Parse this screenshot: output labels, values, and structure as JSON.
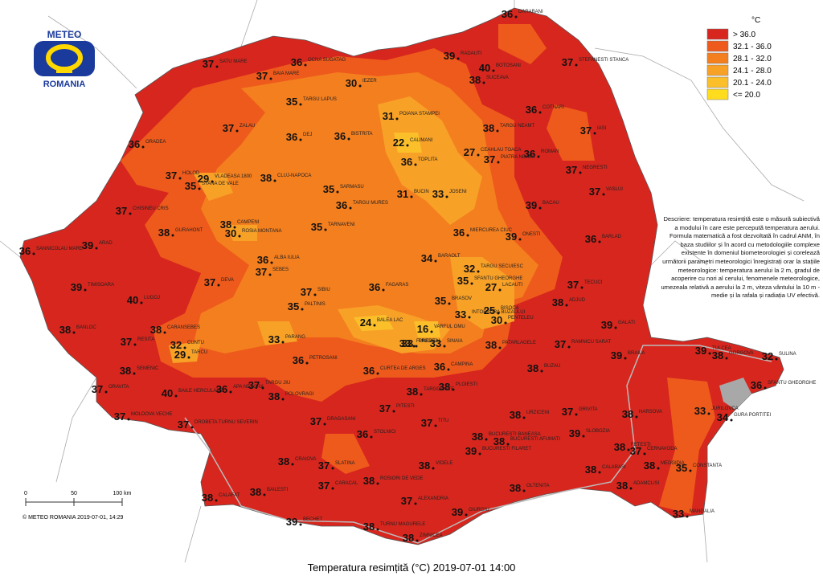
{
  "logo": {
    "top": "METEO",
    "bottom": "ROMANIA"
  },
  "legend": {
    "unit": "°C",
    "classes": [
      {
        "label": "> 36.0",
        "color": "#d7261e"
      },
      {
        "label": "32.1 - 36.0",
        "color": "#ee5a1c"
      },
      {
        "label": "28.1 - 32.0",
        "color": "#f47f1f"
      },
      {
        "label": "24.1 - 28.0",
        "color": "#f8a127"
      },
      {
        "label": "20.1 - 24.0",
        "color": "#fbbf2a"
      },
      {
        "label": "<= 20.0",
        "color": "#ffdc1e"
      }
    ]
  },
  "description": "Descriere: temperatura resimțită este o măsură subiectivă a modului în care este percepută temperatura aerului. Formula matematică a fost dezvoltată în cadrul ANM, în baza studiilor și în acord cu metodologiile complexe existente în domeniul biometeorologiei și corelează următorii parametri meteorologici înregistrați orar la stațiile meteorologice: temperatura aerului la 2 m, gradul de acoperire cu nori al cerului, fenomenele meteorologice, umezeala relativă a aerului la 2 m, viteza vântului la 10 m - medie și la rafala și radiația UV efectivă.",
  "scale": [
    "0",
    "50",
    "100 km"
  ],
  "copyright": "© METEO ROMANIA 2019-07-01, 14:29",
  "title": "Temperatura resimțită (°C) 2019-07-01 14:00",
  "stations": [
    {
      "name": "DARABANI",
      "value": 36
    },
    {
      "name": "STEFANESTI STANCA",
      "value": 37
    },
    {
      "name": "RADAUTI",
      "value": 39
    },
    {
      "name": "BOTOSANI",
      "value": 40
    },
    {
      "name": "SUCEAVA",
      "value": 38
    },
    {
      "name": "COTNARI",
      "value": 36
    },
    {
      "name": "IASI",
      "value": 37
    },
    {
      "name": "TARGU NEAMT",
      "value": 38
    },
    {
      "name": "ROMAN",
      "value": 36
    },
    {
      "name": "PIATRA NEAMT",
      "value": 37
    },
    {
      "name": "NEGRESTI",
      "value": 37
    },
    {
      "name": "VASLUI",
      "value": 37
    },
    {
      "name": "BACAU",
      "value": 39
    },
    {
      "name": "BARLAD",
      "value": 36
    },
    {
      "name": "ONESTI",
      "value": 39
    },
    {
      "name": "TECUCI",
      "value": 37
    },
    {
      "name": "ADJUD",
      "value": 38
    },
    {
      "name": "GALATI",
      "value": 39
    },
    {
      "name": "RAMNICU SARAT",
      "value": 37
    },
    {
      "name": "BRAILA",
      "value": 39
    },
    {
      "name": "TULCEA",
      "value": 39
    },
    {
      "name": "GORGOVA",
      "value": 38
    },
    {
      "name": "SULINA",
      "value": 32
    },
    {
      "name": "SFANTU GHEORGHE",
      "value": 36
    },
    {
      "name": "JURILOVCA",
      "value": 33
    },
    {
      "name": "GURA PORTITEI",
      "value": 34
    },
    {
      "name": "HARSOVA",
      "value": 38
    },
    {
      "name": "CONSTANTA",
      "value": 35
    },
    {
      "name": "MEDGIDIA",
      "value": 38
    },
    {
      "name": "MANGALIA",
      "value": 33
    },
    {
      "name": "ADAMCLISI",
      "value": 38
    },
    {
      "name": "CERNAVODA",
      "value": 37
    },
    {
      "name": "FETESTI",
      "value": 38
    },
    {
      "name": "CALARASI",
      "value": 38
    },
    {
      "name": "SLOBOZIA",
      "value": 39
    },
    {
      "name": "URZICENI",
      "value": 38
    },
    {
      "name": "GRIVITA",
      "value": 37
    },
    {
      "name": "BUZAU",
      "value": 38
    },
    {
      "name": "PATARLAGELE",
      "value": 38
    },
    {
      "name": "PLOIESTI",
      "value": 38
    },
    {
      "name": "CAMPINA",
      "value": 36
    },
    {
      "name": "SINAIA",
      "value": 33
    },
    {
      "name": "PREDEAL",
      "value": 33
    },
    {
      "name": "VARFUL OMU",
      "value": 16
    },
    {
      "name": "TARGOVISTE",
      "value": 38
    },
    {
      "name": "BRASOV",
      "value": 35
    },
    {
      "name": "INTORSURA BUZAULUI",
      "value": 33
    },
    {
      "name": "LACAUTI",
      "value": 27
    },
    {
      "name": "BISOCA",
      "value": 25
    },
    {
      "name": "PENTELEU",
      "value": 30
    },
    {
      "name": "SFANTU GHEORGHE",
      "value": 35
    },
    {
      "name": "TARGU SECUIESC",
      "value": 32
    },
    {
      "name": "BARAOLT",
      "value": 34
    },
    {
      "name": "MIERCUREA CIUC",
      "value": 36
    },
    {
      "name": "JOSENI",
      "value": 33
    },
    {
      "name": "CEAHLAU TOACA",
      "value": 27
    },
    {
      "name": "BUCIN",
      "value": 31
    },
    {
      "name": "TOPLITA",
      "value": 36
    },
    {
      "name": "CALIMANI",
      "value": 22
    },
    {
      "name": "POIANA STAMPEI",
      "value": 31
    },
    {
      "name": "IEZER",
      "value": 30
    },
    {
      "name": "OCNA SUGATAG",
      "value": 36
    },
    {
      "name": "BAIA MARE",
      "value": 37
    },
    {
      "name": "SATU MARE",
      "value": 37
    },
    {
      "name": "TARGU LAPUS",
      "value": 35
    },
    {
      "name": "ZALAU",
      "value": 37
    },
    {
      "name": "DEJ",
      "value": 36
    },
    {
      "name": "BISTRITA",
      "value": 36
    },
    {
      "name": "ORADEA",
      "value": 36
    },
    {
      "name": "CLUJ-NAPOCA",
      "value": 38
    },
    {
      "name": "SARMASU",
      "value": 35
    },
    {
      "name": "TARGU MURES",
      "value": 36
    },
    {
      "name": "TARNAVENI",
      "value": 35
    },
    {
      "name": "VLADEASA 1800",
      "value": 29
    },
    {
      "name": "STANA DE VALE",
      "value": 35
    },
    {
      "name": "HOLOD",
      "value": 37
    },
    {
      "name": "CHISINEU CRIS",
      "value": 37
    },
    {
      "name": "ARAD",
      "value": 39
    },
    {
      "name": "SANNICOLAU MARE",
      "value": 36
    },
    {
      "name": "TIMISOARA",
      "value": 39
    },
    {
      "name": "LUGOJ",
      "value": 40
    },
    {
      "name": "BANLOC",
      "value": 38
    },
    {
      "name": "RESITA",
      "value": 37
    },
    {
      "name": "CARANSEBES",
      "value": 38
    },
    {
      "name": "SEMENIC",
      "value": 38
    },
    {
      "name": "ORAVITA",
      "value": 37
    },
    {
      "name": "MOLDOVA VECHE",
      "value": 37
    },
    {
      "name": "BAILE HERCULANE",
      "value": 40
    },
    {
      "name": "DROBETA TURNU SEVERIN",
      "value": 37
    },
    {
      "name": "CUNTU",
      "value": 32
    },
    {
      "name": "TARCU",
      "value": 29
    },
    {
      "name": "PARANG",
      "value": 33
    },
    {
      "name": "PETROSANI",
      "value": 36
    },
    {
      "name": "TARGU JIU",
      "value": 37
    },
    {
      "name": "APA NEAGRA",
      "value": 36
    },
    {
      "name": "POLOVRAGI",
      "value": 38
    },
    {
      "name": "SIBIU",
      "value": 37
    },
    {
      "name": "PALTINIS",
      "value": 35
    },
    {
      "name": "DEVA",
      "value": 37
    },
    {
      "name": "ALBA IULIA",
      "value": 36
    },
    {
      "name": "SEBES",
      "value": 37
    },
    {
      "name": "CAMPENI",
      "value": 38
    },
    {
      "name": "ROSIA MONTANA",
      "value": 30
    },
    {
      "name": "GURAHONT",
      "value": 38
    },
    {
      "name": "FAGARAS",
      "value": 36
    },
    {
      "name": "BALEA LAC",
      "value": 24
    },
    {
      "name": "CURTEA DE ARGES",
      "value": 36
    },
    {
      "name": "FUNDATA",
      "value": 33
    },
    {
      "name": "PITESTI",
      "value": 37
    },
    {
      "name": "DRAGASANI",
      "value": 37
    },
    {
      "name": "SLATINA",
      "value": 37
    },
    {
      "name": "STOLNICI",
      "value": 36
    },
    {
      "name": "CRAIOVA",
      "value": 38
    },
    {
      "name": "CARACAL",
      "value": 37
    },
    {
      "name": "BAILESTI",
      "value": 38
    },
    {
      "name": "CALAFAT",
      "value": 38
    },
    {
      "name": "BECHET",
      "value": 39
    },
    {
      "name": "TURNU MAGURELE",
      "value": 38
    },
    {
      "name": "ZIMNICEA",
      "value": 38
    },
    {
      "name": "ALEXANDRIA",
      "value": 37
    },
    {
      "name": "ROSIORI DE VEDE",
      "value": 38
    },
    {
      "name": "GIURGIU",
      "value": 39
    },
    {
      "name": "VIDELE",
      "value": 38
    },
    {
      "name": "BUCURESTI AFUMATI",
      "value": 38
    },
    {
      "name": "BUCURESTI BANEASA",
      "value": 38
    },
    {
      "name": "BUCURESTI FILARET",
      "value": 39
    },
    {
      "name": "OLTENITA",
      "value": 38
    },
    {
      "name": "TITU",
      "value": 37
    }
  ]
}
